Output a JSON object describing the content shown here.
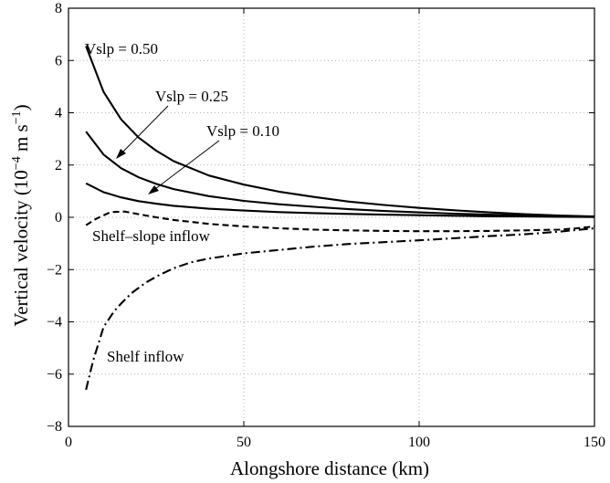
{
  "chart_data": {
    "type": "line",
    "xlabel": "Alongshore distance (km)",
    "ylabel": "Vertical velocity (10",
    "ylabel_exp": "−4",
    "ylabel_unit": " m s",
    "ylabel_unit_exp": "−1",
    "ylabel_close": ")",
    "xlim": [
      0,
      150
    ],
    "ylim": [
      -8,
      8
    ],
    "xticks": [
      "0",
      "50",
      "100",
      "150"
    ],
    "yticks": [
      "−8",
      "−6",
      "−4",
      "−2",
      "0",
      "2",
      "4",
      "6",
      "8"
    ],
    "grid": true,
    "series": [
      {
        "name": "Vslp = 0.50",
        "style": "solid",
        "color": "#000000",
        "x": [
          5,
          10,
          15,
          20,
          25,
          30,
          40,
          50,
          60,
          70,
          80,
          90,
          100,
          110,
          120,
          130,
          140,
          150
        ],
        "y": [
          6.55,
          4.8,
          3.75,
          3.05,
          2.55,
          2.15,
          1.6,
          1.25,
          0.98,
          0.78,
          0.6,
          0.47,
          0.36,
          0.27,
          0.19,
          0.12,
          0.07,
          0.03
        ]
      },
      {
        "name": "Vslp = 0.25",
        "style": "solid",
        "color": "#000000",
        "x": [
          5,
          10,
          15,
          20,
          25,
          30,
          40,
          50,
          60,
          70,
          80,
          90,
          100,
          110,
          120,
          130,
          140,
          150
        ],
        "y": [
          3.28,
          2.4,
          1.88,
          1.53,
          1.28,
          1.08,
          0.81,
          0.63,
          0.5,
          0.4,
          0.31,
          0.24,
          0.19,
          0.14,
          0.1,
          0.07,
          0.04,
          0.02
        ]
      },
      {
        "name": "Vslp = 0.10",
        "style": "solid",
        "color": "#000000",
        "x": [
          5,
          10,
          15,
          20,
          25,
          30,
          40,
          50,
          60,
          70,
          80,
          90,
          100,
          110,
          120,
          130,
          140,
          150
        ],
        "y": [
          1.3,
          0.96,
          0.76,
          0.62,
          0.52,
          0.44,
          0.33,
          0.26,
          0.2,
          0.16,
          0.13,
          0.1,
          0.08,
          0.06,
          0.04,
          0.03,
          0.02,
          0.01
        ]
      },
      {
        "name": "Shelf–slope inflow",
        "style": "dashed",
        "color": "#000000",
        "x": [
          5,
          8,
          12,
          16,
          20,
          25,
          30,
          40,
          50,
          60,
          70,
          80,
          90,
          100,
          110,
          120,
          130,
          140,
          145,
          150
        ],
        "y": [
          -0.3,
          -0.05,
          0.2,
          0.22,
          0.12,
          0.0,
          -0.1,
          -0.25,
          -0.35,
          -0.42,
          -0.47,
          -0.5,
          -0.52,
          -0.53,
          -0.53,
          -0.52,
          -0.5,
          -0.47,
          -0.42,
          -0.35
        ]
      },
      {
        "name": "Shelf inflow",
        "style": "dashdot",
        "color": "#000000",
        "x": [
          5,
          7,
          10,
          13,
          15,
          18,
          22,
          26,
          30,
          35,
          40,
          50,
          60,
          70,
          80,
          90,
          100,
          110,
          120,
          130,
          140,
          150
        ],
        "y": [
          -6.6,
          -5.5,
          -4.2,
          -3.6,
          -3.3,
          -2.9,
          -2.5,
          -2.2,
          -1.95,
          -1.72,
          -1.58,
          -1.38,
          -1.25,
          -1.12,
          -1.02,
          -0.95,
          -0.88,
          -0.8,
          -0.72,
          -0.65,
          -0.55,
          -0.42
        ]
      }
    ],
    "annotations": {
      "vslp050": "Vslp = 0.50",
      "vslp025": "Vslp = 0.25",
      "vslp010": "Vslp = 0.10",
      "shelf_slope": "Shelf–slope inflow",
      "shelf": "Shelf inflow"
    }
  }
}
